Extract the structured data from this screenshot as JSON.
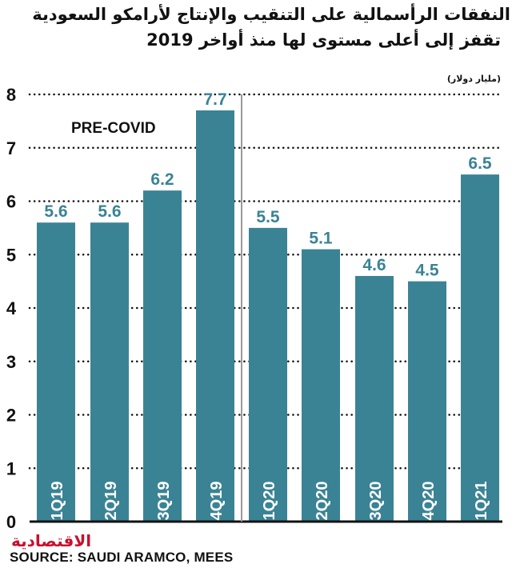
{
  "header": {
    "title_line1": "النفقات الرأسمالية على التنقيب والإنتاج لأرامكو السعودية",
    "title_line2": "تقفز إلى أعلى مستوى لها منذ أواخر 2019",
    "unit_label": "(مليار دولار)"
  },
  "footer": {
    "logo_text": "الاقتصادية",
    "source": "SOURCE: SAUDI ARAMCO, MEES"
  },
  "colors": {
    "bar": "#3a8395",
    "label": "#3a8395",
    "text": "#111111",
    "grid": "#111111",
    "divider": "#9a9a9a",
    "logo": "#c8102e"
  },
  "chart_data": {
    "type": "bar",
    "categories": [
      "1Q19",
      "2Q19",
      "3Q19",
      "4Q19",
      "1Q20",
      "2Q20",
      "3Q20",
      "4Q20",
      "1Q21"
    ],
    "values": [
      5.6,
      5.6,
      6.2,
      7.7,
      5.5,
      5.1,
      4.6,
      4.5,
      6.5
    ],
    "value_labels": [
      "5.6",
      "5.6",
      "6.2",
      "7.7",
      "5.5",
      "5.1",
      "4.6",
      "4.5",
      "6.5"
    ],
    "y_ticks": [
      0,
      1,
      2,
      3,
      4,
      5,
      6,
      7,
      8
    ],
    "ylim": [
      0,
      8
    ],
    "grid": true,
    "annotation": "PRE-COVID"
  }
}
